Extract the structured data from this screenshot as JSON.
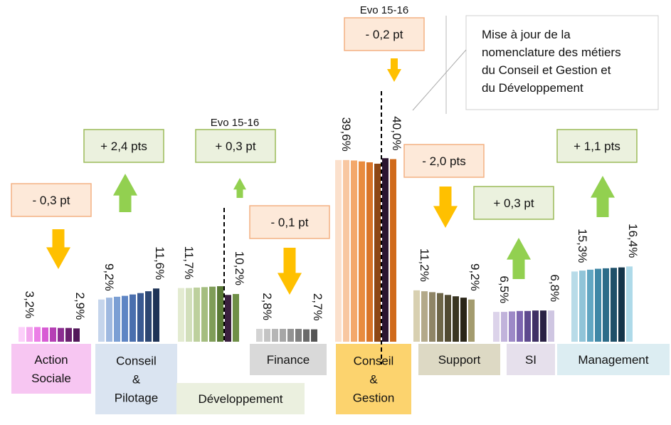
{
  "chart_data": {
    "type": "bar",
    "ylim": [
      0,
      45
    ],
    "evo_heading": "Evo 15-16",
    "note": {
      "lines": [
        "Mise à jour de la",
        "nomenclature des métiers",
        "du Conseil et Gestion et",
        "du Développement"
      ]
    },
    "groups": [
      {
        "id": "action-sociale",
        "label_lines": [
          "Action",
          "Sociale"
        ],
        "label_bg": "#f7c6f2",
        "values": [
          3.2,
          3.2,
          3.2,
          3.1,
          3.1,
          3.0,
          3.0,
          2.9
        ],
        "colors": [
          "#fccffa",
          "#f3a7ee",
          "#eb7fe6",
          "#d85bd4",
          "#b63fb5",
          "#8c2d91",
          "#6a1f6e",
          "#52185a"
        ],
        "first_label": "3,2%",
        "last_label": "2,9%",
        "evo": "- 0,3 pt",
        "direction": "down"
      },
      {
        "id": "conseil-pilotage",
        "label_lines": [
          "Conseil",
          "&",
          "Pilotage"
        ],
        "label_bg": "#dae4f1",
        "values": [
          9.2,
          9.6,
          9.8,
          10.0,
          10.3,
          10.6,
          11.0,
          11.6
        ],
        "colors": [
          "#c5d5ec",
          "#9fb9e0",
          "#7b9fd4",
          "#5e85c4",
          "#4a6fae",
          "#3a5a92",
          "#2c4672",
          "#1e3356"
        ],
        "first_label": "9,2%",
        "last_label": "11,6%",
        "evo": "+ 2,4 pts",
        "direction": "up"
      },
      {
        "id": "developpement",
        "label_lines": [
          "Développement"
        ],
        "label_bg": "#ebf0df",
        "values": [
          11.7,
          11.7,
          11.8,
          11.9,
          12.0,
          12.1,
          10.2,
          10.4
        ],
        "colors": [
          "#e3ebd1",
          "#d2dfbb",
          "#bdd09d",
          "#a4bd7f",
          "#7f9d58",
          "#5a7a36",
          "#3a1f3e",
          "#6f8f47"
        ],
        "first_label": "11,7%",
        "last_label": "10,2%",
        "evo": "+ 0,3 pt",
        "direction": "up",
        "show_evo_heading": true,
        "divider_after": 6
      },
      {
        "id": "finance",
        "label_lines": [
          "Finance"
        ],
        "label_bg": "#d9d9d9",
        "values": [
          2.8,
          2.8,
          2.8,
          2.8,
          2.8,
          2.8,
          2.7,
          2.7
        ],
        "colors": [
          "#d3d3d3",
          "#c4c4c4",
          "#b5b5b5",
          "#a6a6a6",
          "#939393",
          "#7f7f7f",
          "#6a6a6a",
          "#555555"
        ],
        "first_label": "2,8%",
        "last_label": "2,7%",
        "evo": "- 0,1 pt",
        "direction": "down"
      },
      {
        "id": "conseil-gestion",
        "label_lines": [
          "Conseil",
          "&",
          "Gestion"
        ],
        "label_bg": "#fcd36e",
        "values": [
          39.6,
          39.6,
          39.5,
          39.3,
          39.1,
          38.8,
          40.0,
          39.8
        ],
        "colors": [
          "#fbe0cc",
          "#f8c7a1",
          "#f3a86b",
          "#e98c3f",
          "#d97528",
          "#8e4714",
          "#2b1530",
          "#d06a1b"
        ],
        "first_label": "39,6%",
        "last_label": "40,0%",
        "evo": "- 0,2 pt",
        "direction": "down",
        "show_evo_heading": true,
        "divider_after": 6
      },
      {
        "id": "support",
        "label_lines": [
          "Support"
        ],
        "label_bg": "#ddd9c4",
        "values": [
          11.2,
          11.0,
          10.8,
          10.6,
          10.2,
          9.9,
          9.6,
          9.2
        ],
        "colors": [
          "#d8d0b1",
          "#b3a98a",
          "#8f8566",
          "#6e6648",
          "#514a31",
          "#3a3522",
          "#2a2618",
          "#a39b6e"
        ],
        "first_label": "11,2%",
        "last_label": "9,2%",
        "evo": "- 2,0 pts",
        "direction": "down"
      },
      {
        "id": "si",
        "label_lines": [
          "SI"
        ],
        "label_bg": "#e6e0ec",
        "values": [
          6.5,
          6.5,
          6.6,
          6.7,
          6.7,
          6.8,
          6.8,
          6.8
        ],
        "colors": [
          "#dcd3ea",
          "#c1b3db",
          "#9d89c7",
          "#7e67b0",
          "#5e4a8e",
          "#403165",
          "#2a2145",
          "#cfc6e2"
        ],
        "first_label": "6,5%",
        "last_label": "6,8%",
        "evo": "+ 0,3 pt",
        "direction": "up"
      },
      {
        "id": "management",
        "label_lines": [
          "Management"
        ],
        "label_bg": "#dcedf2",
        "values": [
          15.3,
          15.5,
          15.7,
          15.9,
          16.0,
          16.1,
          16.2,
          16.4
        ],
        "colors": [
          "#b8dbe8",
          "#90c4d8",
          "#62a6c2",
          "#3f87a6",
          "#2c6c89",
          "#1f5069",
          "#14354a",
          "#aedae9"
        ],
        "first_label": "15,3%",
        "last_label": "16,4%",
        "evo": "+ 1,1 pts",
        "direction": "up"
      }
    ]
  },
  "colors": {
    "arrow_up": "#92d050",
    "arrow_down": "#ffc000",
    "up_box_fill": "#ebf1de",
    "up_box_stroke": "#9bbb59",
    "down_box_fill": "#fde9d9",
    "down_box_stroke": "#f4b183"
  }
}
